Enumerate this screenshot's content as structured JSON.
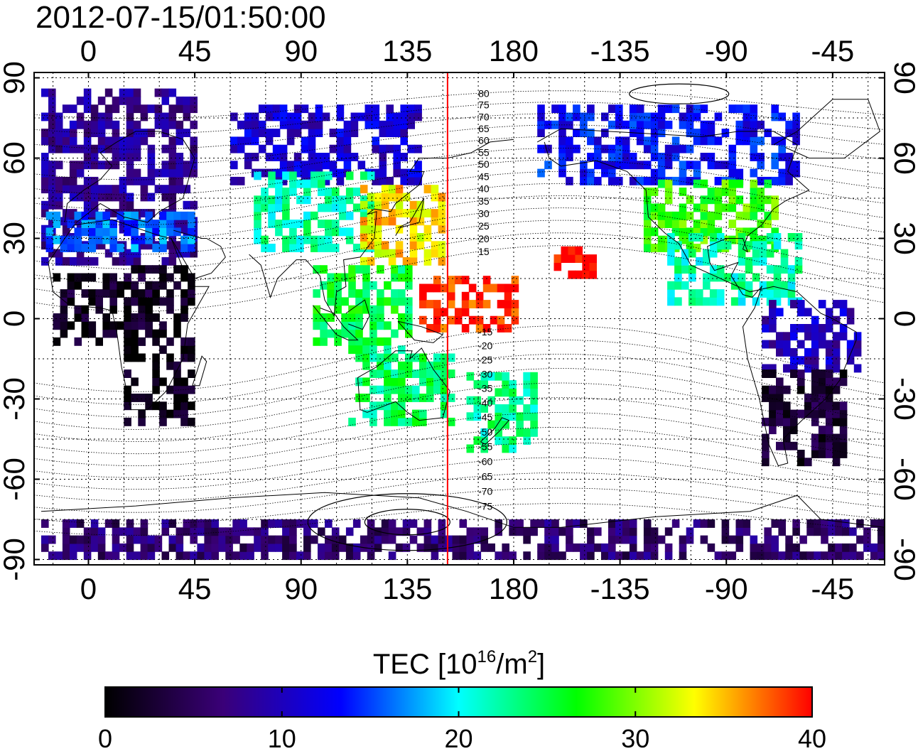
{
  "title": "2012-07-15/01:50:00",
  "map": {
    "lon_ticks": [
      {
        "value": 0,
        "label": "0"
      },
      {
        "value": 45,
        "label": "45"
      },
      {
        "value": 90,
        "label": "90"
      },
      {
        "value": 135,
        "label": "135"
      },
      {
        "value": 180,
        "label": "180"
      },
      {
        "value": 225,
        "label": "-135"
      },
      {
        "value": 270,
        "label": "-90"
      },
      {
        "value": 315,
        "label": "-45"
      }
    ],
    "lat_ticks": [
      {
        "value": 90,
        "label": "90"
      },
      {
        "value": 60,
        "label": "60"
      },
      {
        "value": 30,
        "label": "30"
      },
      {
        "value": 0,
        "label": "0"
      },
      {
        "value": -30,
        "label": "-30"
      },
      {
        "value": -60,
        "label": "-60"
      },
      {
        "value": -90,
        "label": "-90"
      }
    ],
    "lon_range": [
      -23,
      337
    ],
    "lat_range": [
      -92,
      92
    ],
    "grid": "dotted every 15 degrees",
    "red_meridian_lon": 152,
    "contour_labels": [
      {
        "lat": 80,
        "label": "80"
      },
      {
        "lat": 75,
        "label": "75"
      },
      {
        "lat": 70,
        "label": "70"
      },
      {
        "lat": 65,
        "label": "65"
      },
      {
        "lat": 60,
        "label": "60"
      },
      {
        "lat": 55,
        "label": "55"
      },
      {
        "lat": 50,
        "label": "50"
      },
      {
        "lat": 45,
        "label": "45"
      },
      {
        "lat": 40,
        "label": "40"
      },
      {
        "lat": 35,
        "label": "35"
      },
      {
        "lat": 30,
        "label": "30"
      },
      {
        "lat": 25,
        "label": "25"
      },
      {
        "lat": 20,
        "label": "20"
      },
      {
        "lat": 15,
        "label": "15"
      },
      {
        "lat": -15,
        "label": "-15"
      },
      {
        "lat": -20,
        "label": "-20"
      },
      {
        "lat": -25,
        "label": "-25"
      },
      {
        "lat": -30,
        "label": "-30"
      },
      {
        "lat": -35,
        "label": "-35"
      },
      {
        "lat": -40,
        "label": "-40"
      },
      {
        "lat": -45,
        "label": "-45"
      },
      {
        "lat": -50,
        "label": "-50"
      },
      {
        "lat": -55,
        "label": "-55"
      },
      {
        "lat": -60,
        "label": "-60"
      },
      {
        "lat": -65,
        "label": "-65"
      },
      {
        "lat": -70,
        "label": "-70"
      },
      {
        "lat": -75,
        "label": "-75"
      }
    ],
    "tec_regions": [
      {
        "name": "europe-high-lat",
        "lon": [
          -20,
          45
        ],
        "lat": [
          20,
          85
        ],
        "tec": 8
      },
      {
        "name": "europe-mid-lat",
        "lon": [
          -18,
          45
        ],
        "lat": [
          25,
          40
        ],
        "tec": 16
      },
      {
        "name": "africa-south",
        "lon": [
          15,
          45
        ],
        "lat": [
          -40,
          20
        ],
        "tec": 1
      },
      {
        "name": "africa-west",
        "lon": [
          -15,
          30
        ],
        "lat": [
          -10,
          15
        ],
        "tec": 2
      },
      {
        "name": "siberia",
        "lon": [
          60,
          140
        ],
        "lat": [
          50,
          80
        ],
        "tec": 11
      },
      {
        "name": "central-asia",
        "lon": [
          70,
          120
        ],
        "lat": [
          25,
          55
        ],
        "tec": 22
      },
      {
        "name": "japan-east-asia",
        "lon": [
          115,
          150
        ],
        "lat": [
          20,
          48
        ],
        "tec": 34
      },
      {
        "name": "southeast-asia",
        "lon": [
          95,
          135
        ],
        "lat": [
          -10,
          20
        ],
        "tec": 25
      },
      {
        "name": "western-pacific",
        "lon": [
          140,
          180
        ],
        "lat": [
          -5,
          15
        ],
        "tec": 39
      },
      {
        "name": "hawaii",
        "lon": [
          197,
          213
        ],
        "lat": [
          15,
          28
        ],
        "tec": 40
      },
      {
        "name": "australia",
        "lon": [
          110,
          155
        ],
        "lat": [
          -40,
          -10
        ],
        "tec": 24
      },
      {
        "name": "new-zealand",
        "lon": [
          160,
          190
        ],
        "lat": [
          -50,
          -20
        ],
        "tec": 23
      },
      {
        "name": "north-america-north",
        "lon": [
          190,
          300
        ],
        "lat": [
          50,
          80
        ],
        "tec": 13
      },
      {
        "name": "north-america-mid",
        "lon": [
          235,
          290
        ],
        "lat": [
          25,
          50
        ],
        "tec": 28
      },
      {
        "name": "central-america",
        "lon": [
          245,
          300
        ],
        "lat": [
          5,
          30
        ],
        "tec": 22
      },
      {
        "name": "south-america-north",
        "lon": [
          285,
          325
        ],
        "lat": [
          -20,
          5
        ],
        "tec": 10
      },
      {
        "name": "south-america-south",
        "lon": [
          285,
          320
        ],
        "lat": [
          -55,
          -20
        ],
        "tec": 3
      },
      {
        "name": "antarctica",
        "lon": [
          -20,
          337
        ],
        "lat": [
          -90,
          -75
        ],
        "tec": 6
      }
    ]
  },
  "colorbar": {
    "label": "TEC  [10",
    "label_exp": "16",
    "label_unit": "/m",
    "label_unit_exp": "2",
    "label_end": "]",
    "min": 0,
    "max": 40,
    "ticks": [
      {
        "value": 0,
        "label": "0"
      },
      {
        "value": 10,
        "label": "10"
      },
      {
        "value": 20,
        "label": "20"
      },
      {
        "value": 30,
        "label": "30"
      },
      {
        "value": 40,
        "label": "40"
      }
    ],
    "colors": [
      "#000000",
      "#3a0078",
      "#0000ff",
      "#00ffff",
      "#00ff00",
      "#ffff00",
      "#ff0000"
    ],
    "outline_color": "#000000"
  },
  "colors": {
    "red_meridian": "#ff0000",
    "grid": "#000000",
    "contour": "#000000"
  }
}
